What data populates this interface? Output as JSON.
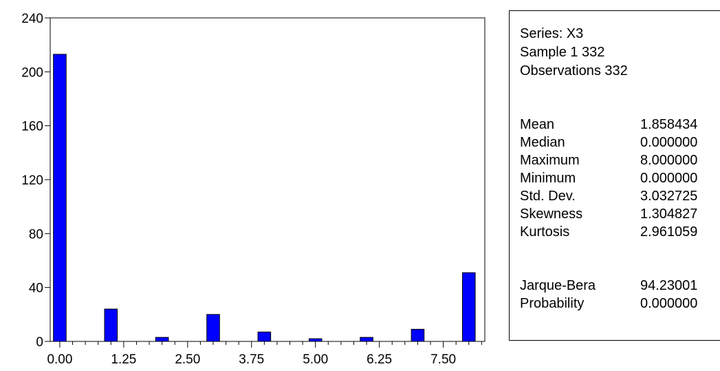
{
  "chart_data": {
    "type": "bar",
    "categories": [
      "0.00",
      "1.00",
      "2.00",
      "3.00",
      "4.00",
      "5.00",
      "6.00",
      "7.00",
      "8.00"
    ],
    "x": [
      0,
      1,
      2,
      3,
      4,
      5,
      6,
      7,
      8
    ],
    "values": [
      213,
      24,
      3,
      20,
      7,
      2,
      3,
      9,
      51
    ],
    "xticks": [
      "0.00",
      "1.25",
      "2.50",
      "3.75",
      "5.00",
      "6.25",
      "7.50"
    ],
    "xtick_values": [
      0,
      1.25,
      2.5,
      3.75,
      5,
      6.25,
      7.5
    ],
    "yticks": [
      "0",
      "40",
      "80",
      "120",
      "160",
      "200",
      "240"
    ],
    "ylim": [
      0,
      240
    ],
    "xlim": [
      -0.1875,
      8.3125
    ],
    "bar_color": "#0000FF",
    "grid": false,
    "title": "",
    "xlabel": "",
    "ylabel": ""
  },
  "stats": {
    "series": "Series: X3",
    "sample": "Sample 1 332",
    "observations": "Observations 332",
    "rows": [
      {
        "label": "Mean",
        "value": "1.858434"
      },
      {
        "label": "Median",
        "value": "0.000000"
      },
      {
        "label": "Maximum",
        "value": "8.000000"
      },
      {
        "label": "Minimum",
        "value": "0.000000"
      },
      {
        "label": "Std. Dev.",
        "value": "3.032725"
      },
      {
        "label": "Skewness",
        "value": "1.304827"
      },
      {
        "label": "Kurtosis",
        "value": "2.961059"
      }
    ],
    "test_rows": [
      {
        "label": "Jarque-Bera",
        "value": "94.23001"
      },
      {
        "label": "Probability",
        "value": "0.000000"
      }
    ]
  }
}
